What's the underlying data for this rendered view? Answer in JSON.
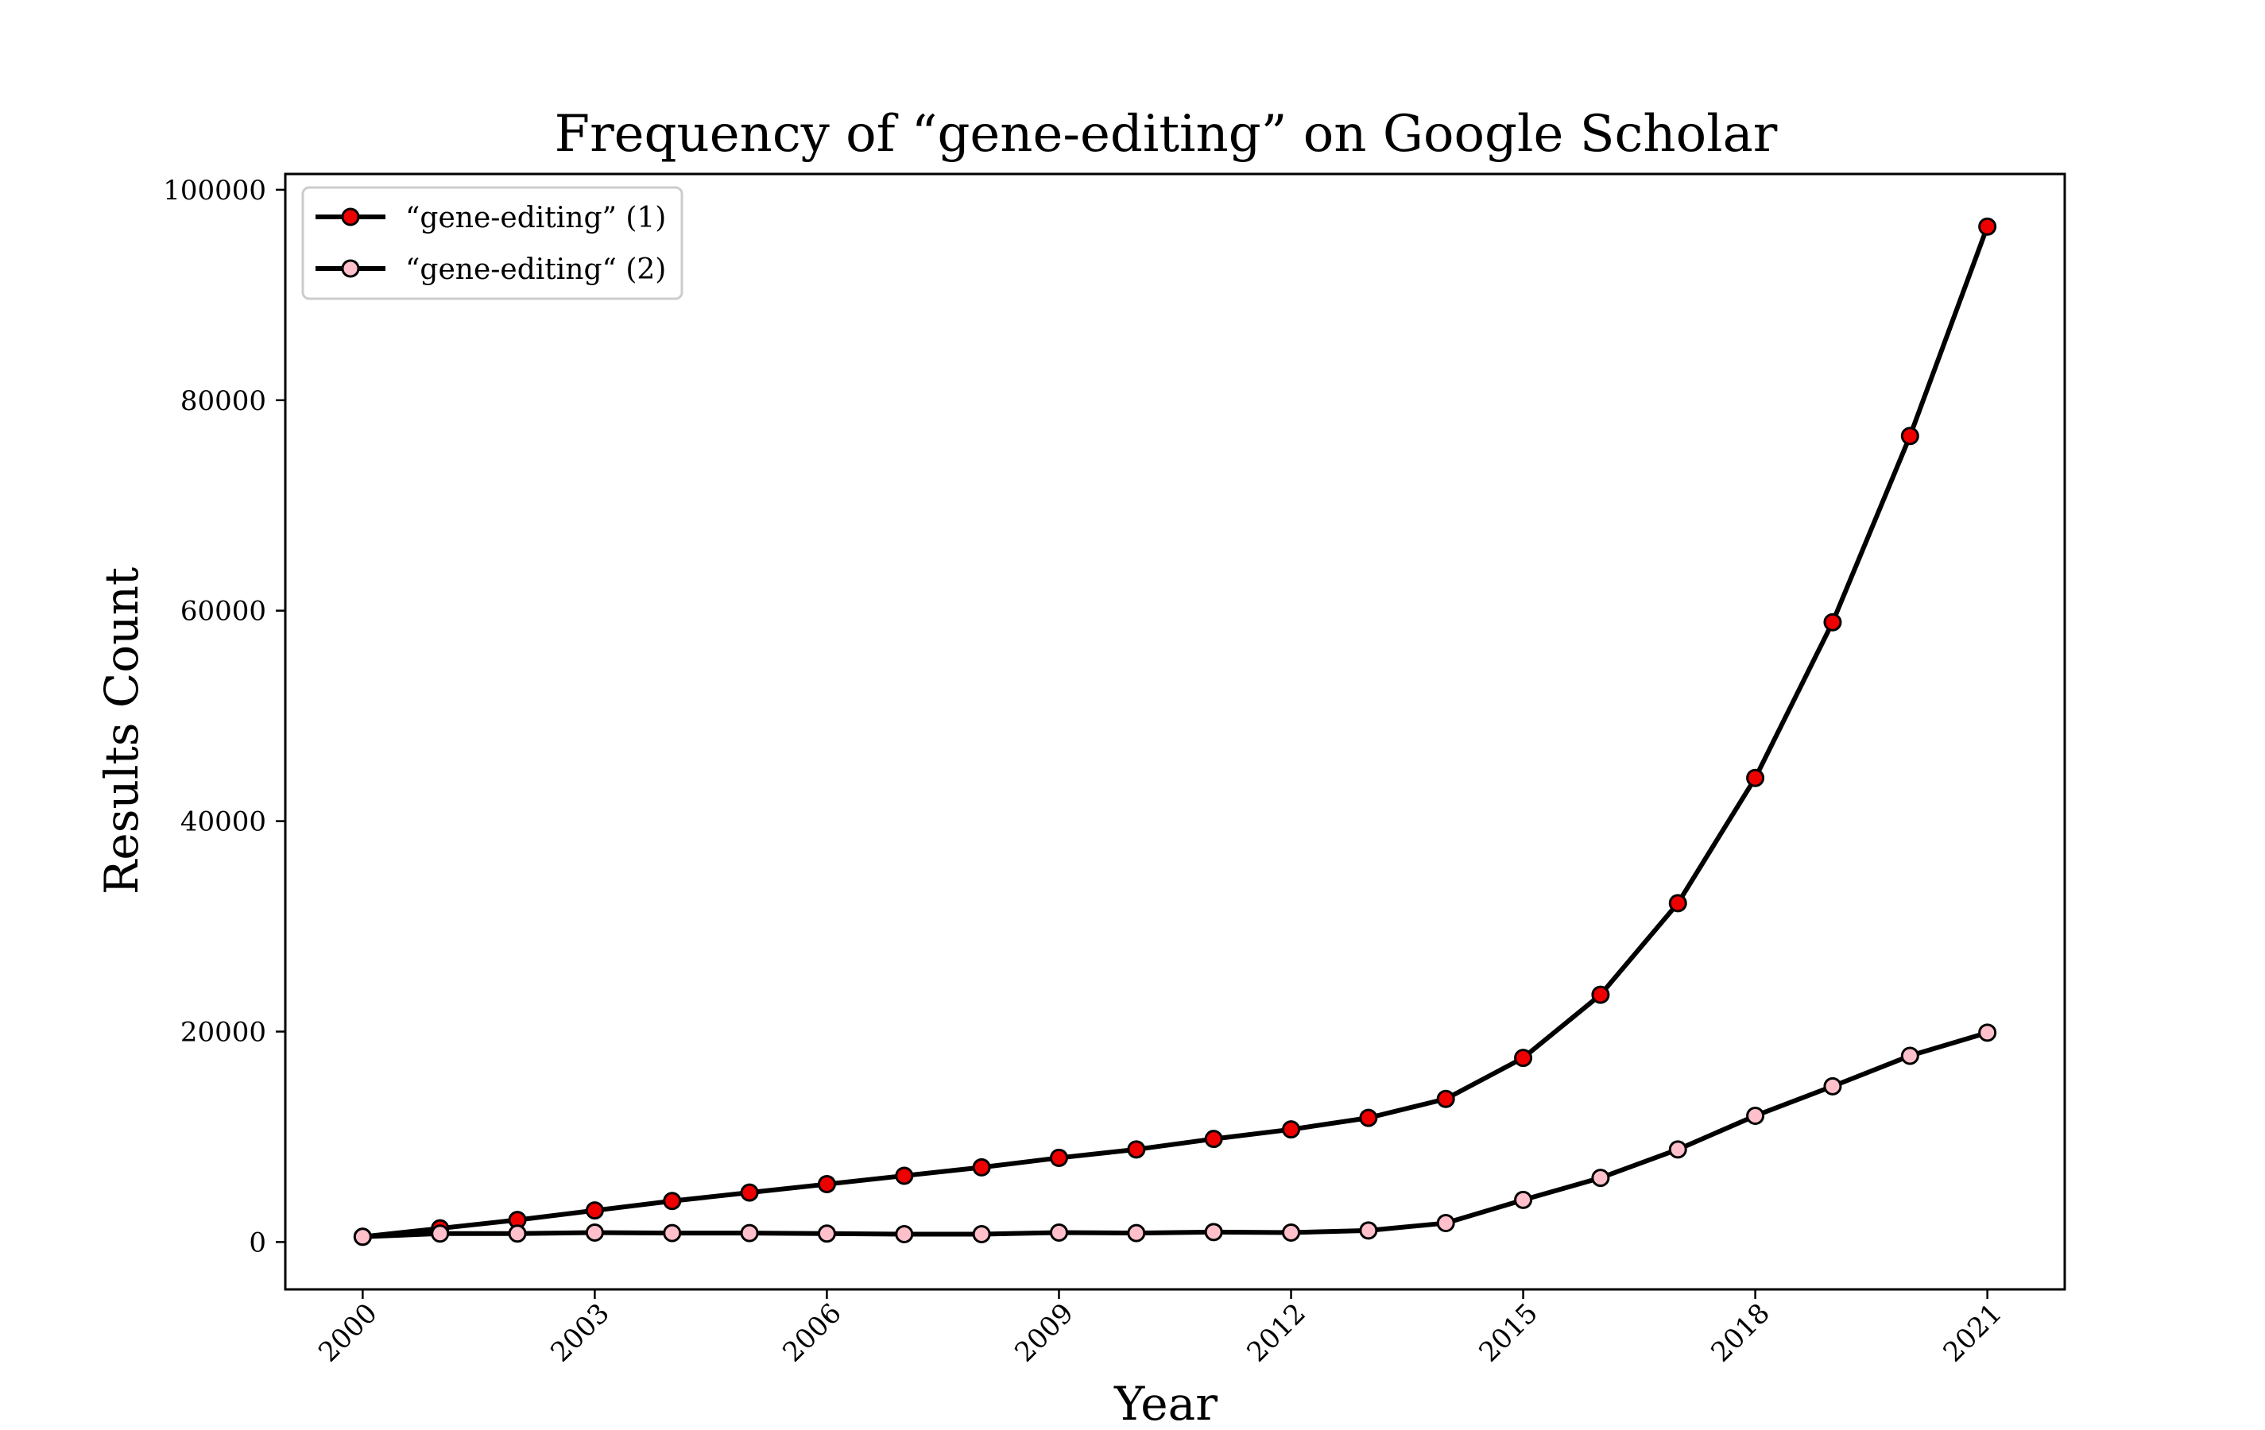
{
  "chart_data": {
    "type": "line",
    "title": "Frequency of “gene-editing” on Google Scholar",
    "xlabel": "Year",
    "ylabel": "Results Count",
    "xlim": [
      1999,
      2022
    ],
    "ylim": [
      -4500,
      101500
    ],
    "xticks": [
      2000,
      2003,
      2006,
      2009,
      2012,
      2015,
      2018,
      2021
    ],
    "xtick_labels": [
      "2000",
      "2003",
      "2006",
      "2009",
      "2012",
      "2015",
      "2018",
      "2021"
    ],
    "yticks": [
      0,
      20000,
      40000,
      60000,
      80000,
      100000
    ],
    "ytick_labels": [
      "0",
      "20000",
      "40000",
      "60000",
      "80000",
      "100000"
    ],
    "grid": false,
    "legend_position": "top-left",
    "x": [
      2000,
      2001,
      2002,
      2003,
      2004,
      2005,
      2006,
      2007,
      2008,
      2009,
      2010,
      2011,
      2012,
      2013,
      2014,
      2015,
      2016,
      2017,
      2018,
      2019,
      2020,
      2021
    ],
    "series": [
      {
        "name": "“gene-editing” (1)",
        "line_color": "#000000",
        "marker_color": "#ee0000",
        "values": [
          500,
          1300,
          2100,
          3000,
          3900,
          4700,
          5500,
          6300,
          7100,
          8000,
          8800,
          9800,
          10700,
          11800,
          13600,
          17500,
          23500,
          32200,
          44100,
          58900,
          76600,
          96500
        ]
      },
      {
        "name": "“gene-editing“ (2)",
        "line_color": "#000000",
        "marker_color": "#ffc0cb",
        "values": [
          500,
          800,
          800,
          900,
          850,
          850,
          800,
          750,
          750,
          900,
          850,
          950,
          900,
          1100,
          1800,
          4000,
          6100,
          8800,
          12000,
          14800,
          17700,
          19900
        ]
      }
    ]
  }
}
